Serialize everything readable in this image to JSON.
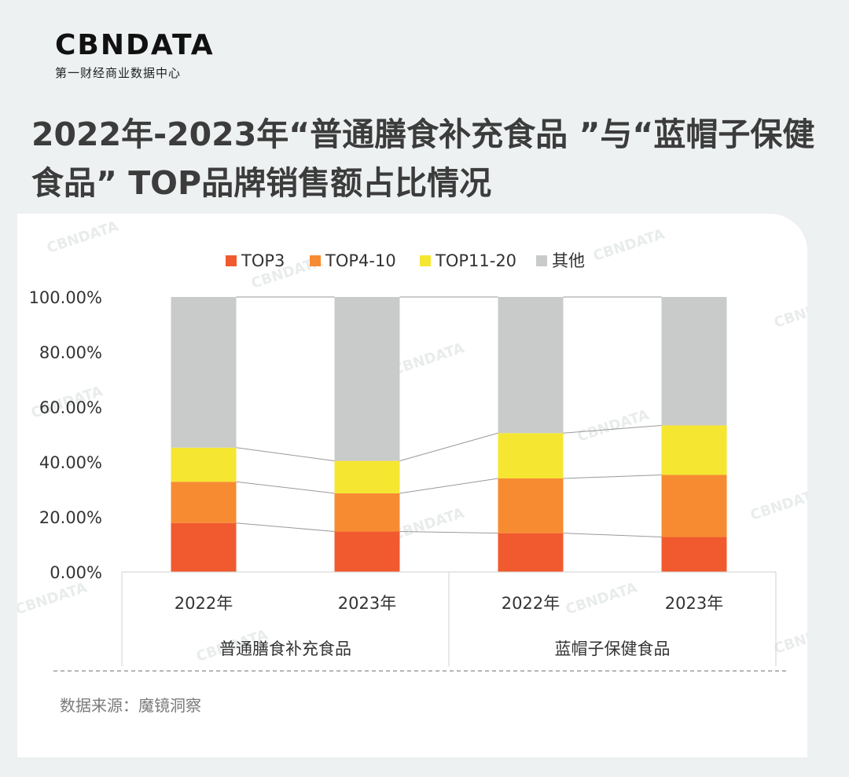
{
  "brand": {
    "logo_text": "CBNDATA",
    "logo_sub": "第一财经商业数据中心"
  },
  "title": "2022年-2023年“普通膳食补充食品 ”与“蓝帽子保健食品” TOP品牌销售额占比情况",
  "source": "数据来源：魔镜洞察",
  "watermark": "CBNDATA",
  "colors": {
    "TOP3": "#f15a2e",
    "TOP4-10": "#f78b32",
    "TOP11-20": "#f5e632",
    "其他": "#c9cbcb"
  },
  "chart_data": {
    "type": "bar",
    "stacked": true,
    "categories": [
      "2022年",
      "2023年",
      "2022年",
      "2023年"
    ],
    "groups": [
      {
        "name": "普通膳食补充食品",
        "categories": [
          "2022年",
          "2023年"
        ]
      },
      {
        "name": "蓝帽子保健食品",
        "categories": [
          "2022年",
          "2023年"
        ]
      }
    ],
    "series": [
      {
        "name": "TOP3",
        "values": [
          17.8,
          14.7,
          14.1,
          12.7
        ]
      },
      {
        "name": "TOP4-10",
        "values": [
          15.0,
          13.9,
          19.9,
          22.6
        ]
      },
      {
        "name": "TOP11-20",
        "values": [
          12.4,
          11.8,
          16.5,
          18.0
        ]
      },
      {
        "name": "其他",
        "values": [
          54.8,
          59.6,
          49.5,
          46.7
        ]
      }
    ],
    "yticks": [
      "0.00%",
      "20.00%",
      "40.00%",
      "60.00%",
      "80.00%",
      "100.00%"
    ],
    "ylim": [
      0,
      100
    ],
    "legend_position": "top",
    "series_lines": true
  }
}
